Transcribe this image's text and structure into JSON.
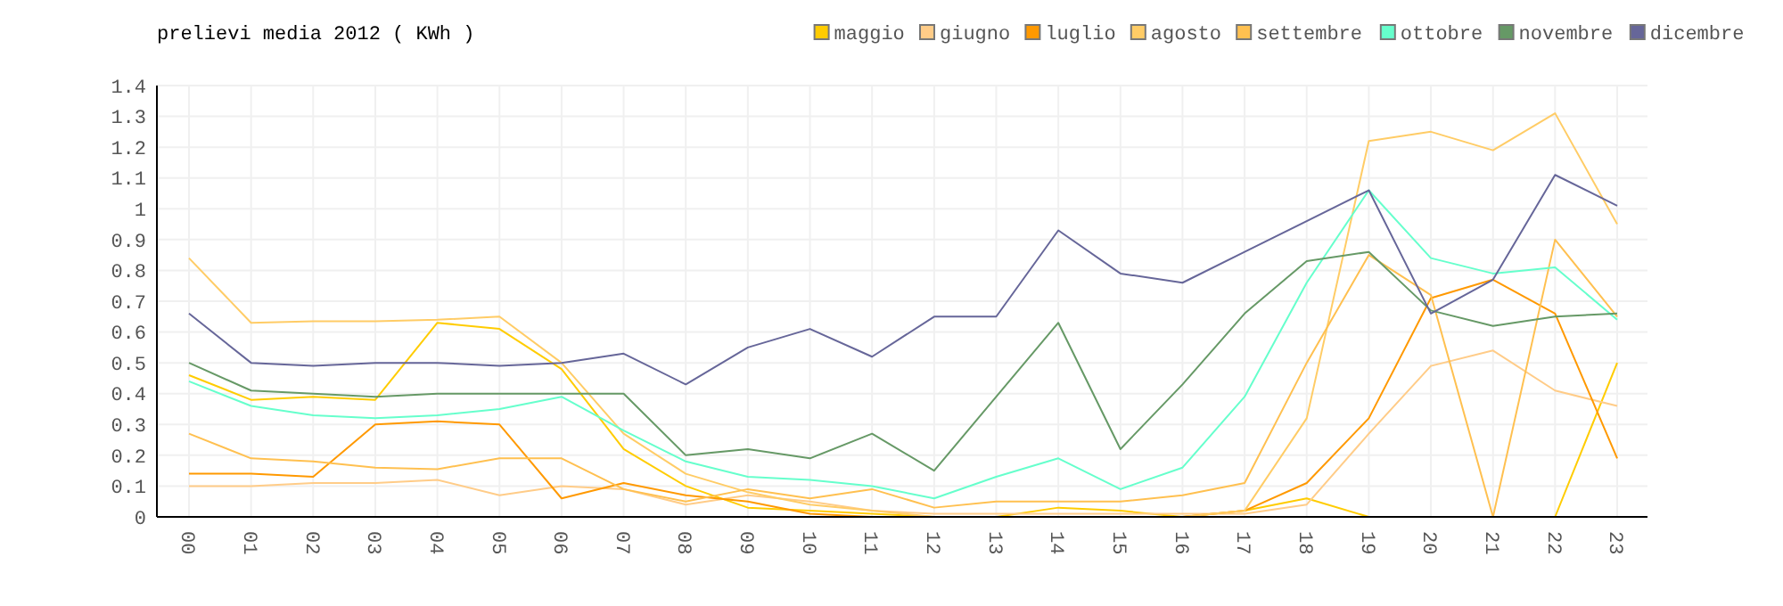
{
  "chart_data": {
    "type": "line",
    "title": "prelievi media 2012 ( KWh )",
    "categories": [
      "00",
      "01",
      "02",
      "03",
      "04",
      "05",
      "06",
      "07",
      "08",
      "09",
      "10",
      "11",
      "12",
      "13",
      "14",
      "15",
      "16",
      "17",
      "18",
      "19",
      "20",
      "21",
      "22",
      "23"
    ],
    "ylim": [
      0,
      1.4
    ],
    "yticks": [
      0,
      0.1,
      0.2,
      0.3,
      0.4,
      0.5,
      0.6,
      0.7,
      0.8,
      0.9,
      {
        "value": 1,
        "label": "1"
      },
      1.1,
      1.2,
      1.3,
      1.4
    ],
    "grid": true,
    "legend": "top right",
    "marker": "none",
    "line_style": "solid",
    "series": [
      {
        "name": "maggio",
        "color": "#ffcc00",
        "values": [
          0.46,
          0.38,
          0.39,
          0.38,
          0.63,
          0.61,
          0.48,
          0.22,
          0.1,
          0.03,
          0.02,
          0.01,
          0,
          0,
          0.03,
          0.02,
          0,
          0.02,
          0.06,
          0,
          0,
          0,
          0,
          0.5
        ]
      },
      {
        "name": "giugno",
        "color": "#ffcc88",
        "values": [
          0.1,
          0.1,
          0.11,
          0.11,
          0.12,
          0.07,
          0.1,
          0.09,
          0.04,
          0.07,
          0.05,
          0.02,
          0.01,
          0.01,
          0.01,
          0.01,
          0.01,
          0.01,
          0.04,
          0.27,
          0.49,
          0.54,
          0.41,
          0.36
        ]
      },
      {
        "name": "luglio",
        "color": "#ff9900",
        "values": [
          0.14,
          0.14,
          0.13,
          0.3,
          0.31,
          0.3,
          0.06,
          0.11,
          0.07,
          0.05,
          0.01,
          0,
          0,
          0,
          0,
          0,
          0,
          0.02,
          0.11,
          0.32,
          0.71,
          0.77,
          0.66,
          0.19
        ]
      },
      {
        "name": "agosto",
        "color": "#ffcc66",
        "values": [
          0.84,
          0.63,
          0.635,
          0.635,
          0.64,
          0.65,
          0.5,
          0.27,
          0.14,
          0.08,
          0.04,
          0.02,
          0,
          0,
          0,
          0,
          0,
          0.02,
          0.32,
          1.22,
          1.25,
          1.19,
          1.31,
          0.95
        ]
      },
      {
        "name": "settembre",
        "color": "#ffc050",
        "values": [
          0.27,
          0.19,
          0.18,
          0.16,
          0.155,
          0.19,
          0.19,
          0.09,
          0.05,
          0.09,
          0.06,
          0.09,
          0.03,
          0.05,
          0.05,
          0.05,
          0.07,
          0.11,
          0.5,
          0.85,
          0.72,
          0,
          0.9,
          0.65
        ]
      },
      {
        "name": "ottobre",
        "color": "#66ffcc",
        "values": [
          0.44,
          0.36,
          0.33,
          0.32,
          0.33,
          0.35,
          0.39,
          0.28,
          0.18,
          0.13,
          0.12,
          0.1,
          0.06,
          0.13,
          0.19,
          0.09,
          0.16,
          0.39,
          0.76,
          1.06,
          0.84,
          0.79,
          0.81,
          0.64
        ]
      },
      {
        "name": "novembre",
        "color": "#669966",
        "values": [
          0.5,
          0.41,
          0.4,
          0.39,
          0.4,
          0.4,
          0.4,
          0.4,
          0.2,
          0.22,
          0.19,
          0.27,
          0.15,
          0.39,
          0.63,
          0.22,
          0.43,
          0.66,
          0.83,
          0.86,
          0.67,
          0.62,
          0.65,
          0.66
        ]
      },
      {
        "name": "dicembre",
        "color": "#666699",
        "values": [
          0.66,
          0.5,
          0.49,
          0.5,
          0.5,
          0.49,
          0.5,
          0.53,
          0.43,
          0.55,
          0.61,
          0.52,
          0.65,
          0.65,
          0.93,
          0.79,
          0.76,
          0.86,
          0.96,
          1.06,
          0.66,
          0.77,
          1.11,
          1.01
        ]
      }
    ]
  }
}
